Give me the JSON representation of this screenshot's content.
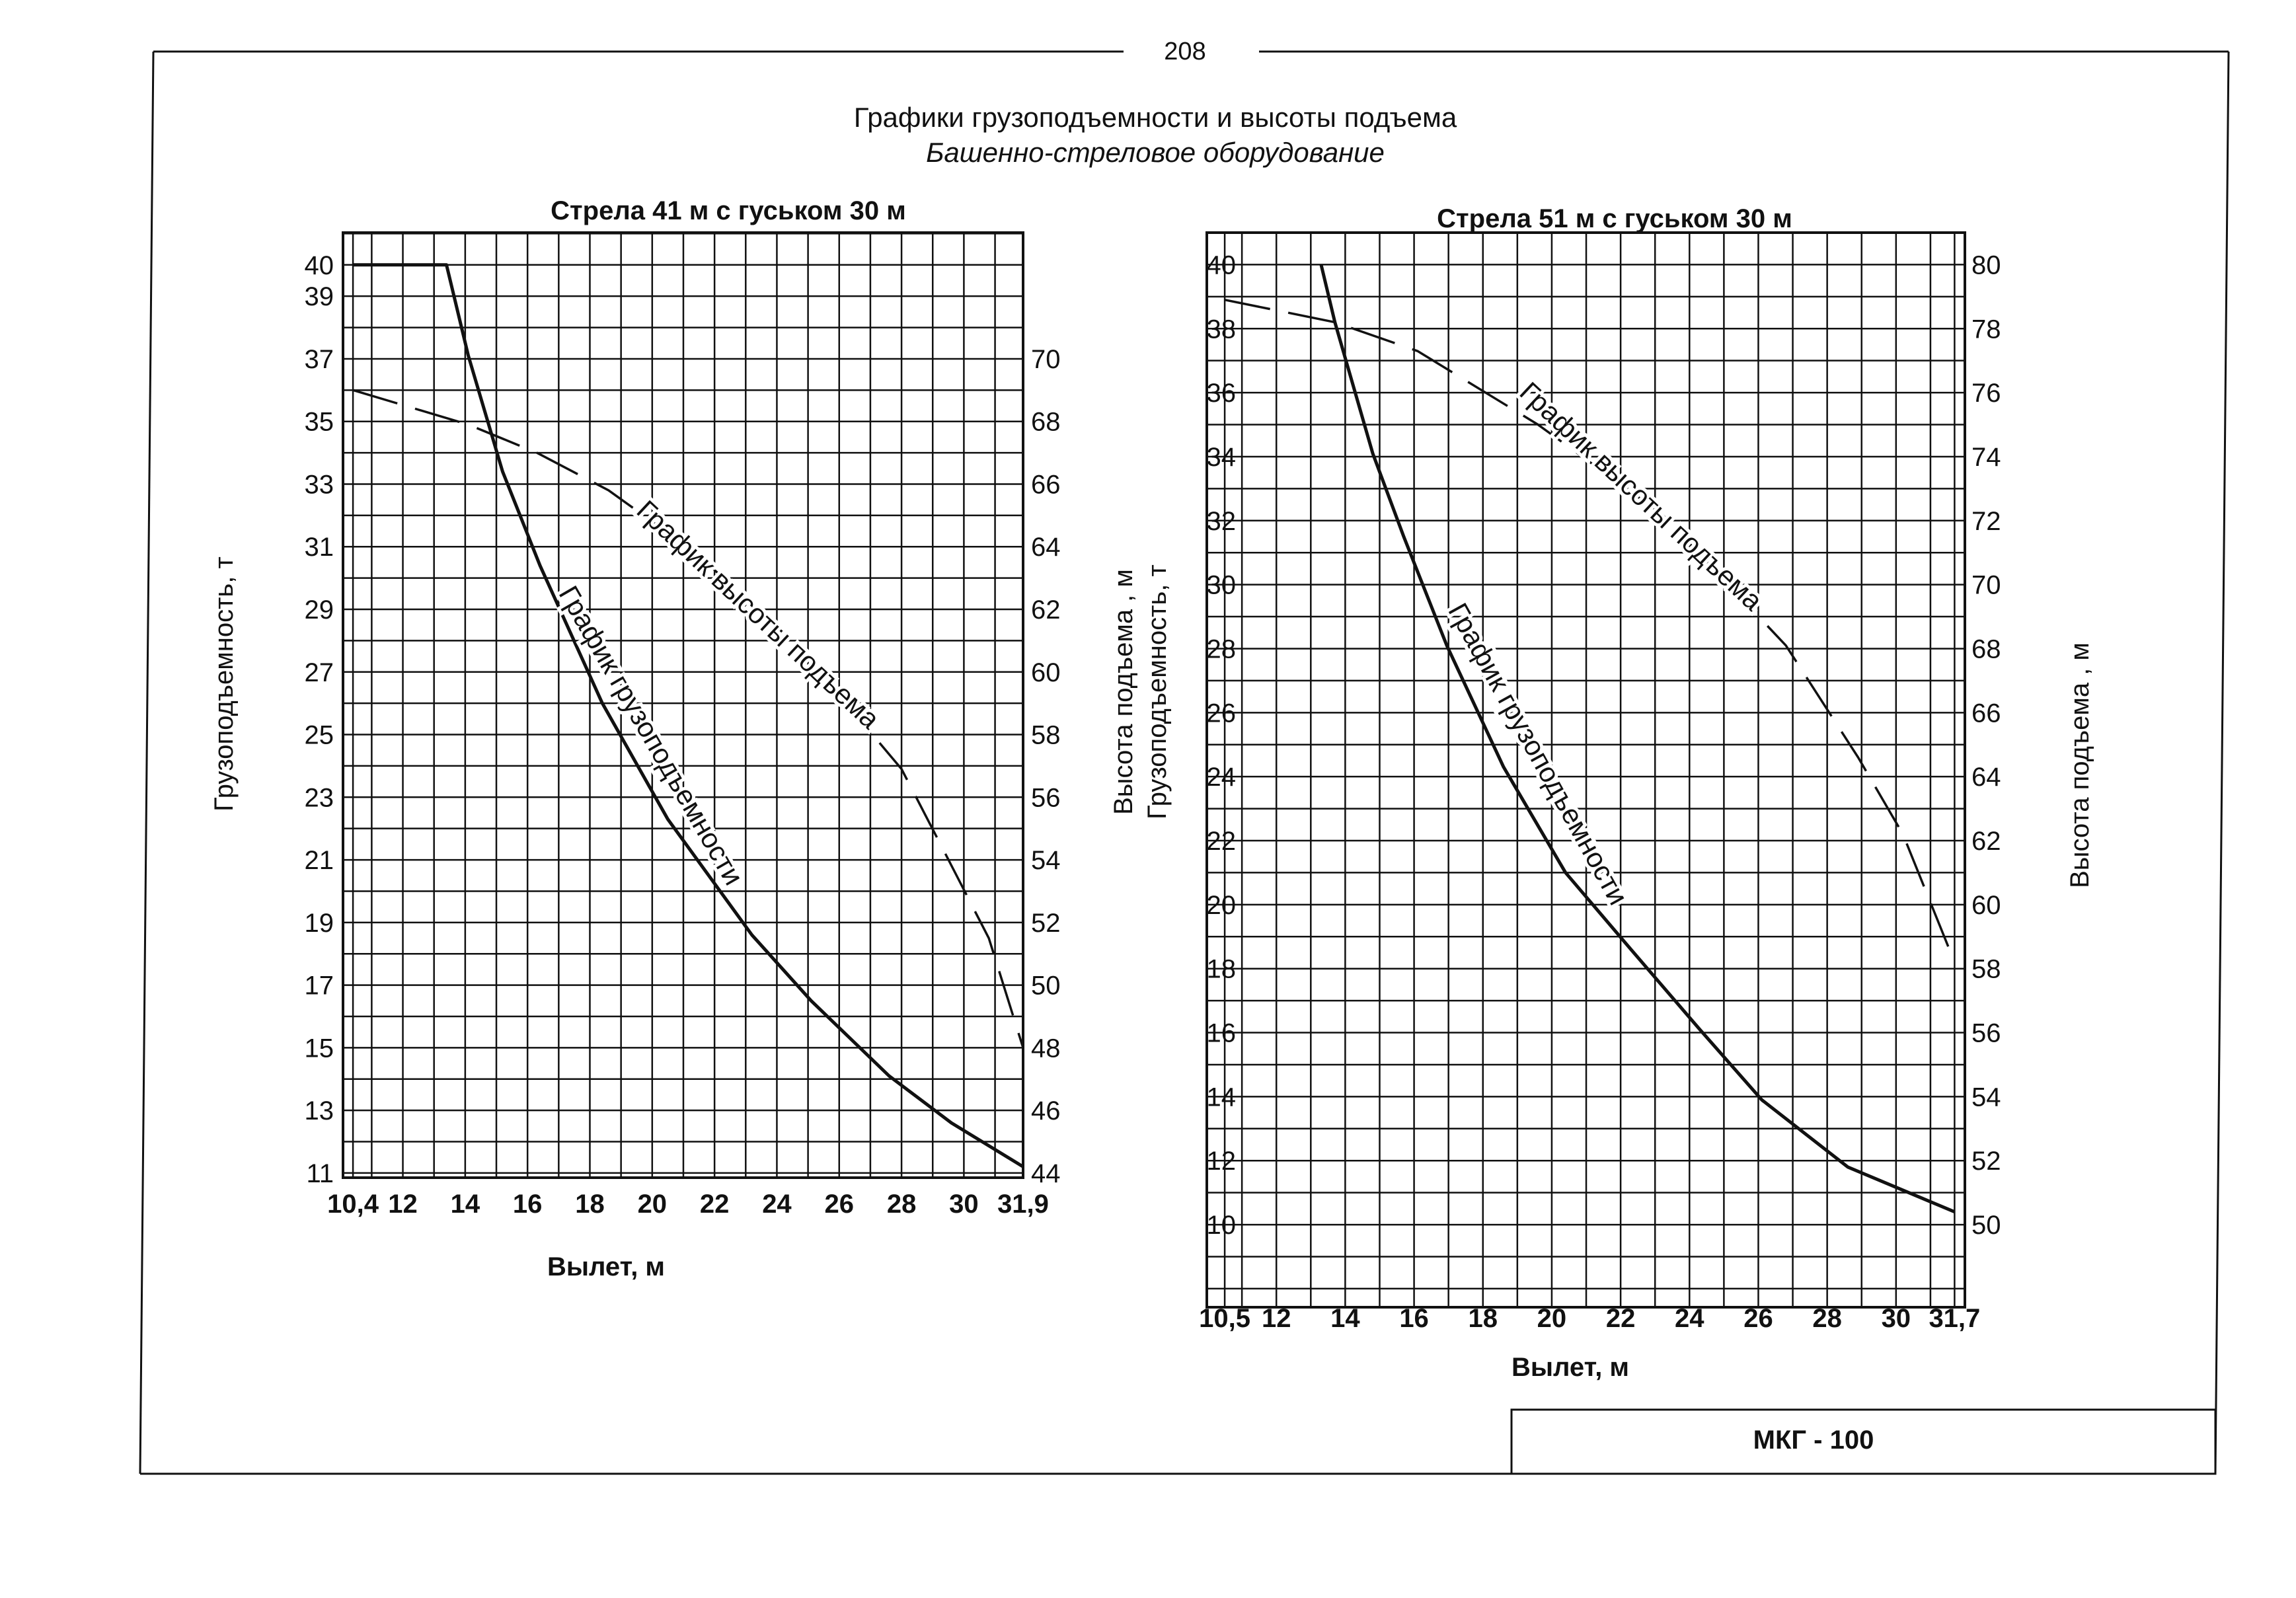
{
  "page_number": "208",
  "title": "Графики грузоподъемности и высоты подъема",
  "subtitle": "Башенно-стреловое оборудование",
  "stamp": "МКГ - 100",
  "colors": {
    "ink": "#111111",
    "paper": "#ffffff"
  },
  "chart_data": [
    {
      "type": "line",
      "title": "Стрела 41 м с гуськом 30 м",
      "xlabel": "Вылет, м",
      "ylabel": "Грузоподъемность, т",
      "y2label": "",
      "xlim": [
        10.4,
        31.9
      ],
      "ylim": [
        11,
        40
      ],
      "y2lim": [
        44,
        70
      ],
      "grid": true,
      "x_ticks": [
        {
          "v": 10.4,
          "t": "10,4"
        },
        {
          "v": 12,
          "t": "12"
        },
        {
          "v": 14,
          "t": "14"
        },
        {
          "v": 16,
          "t": "16"
        },
        {
          "v": 18,
          "t": "18"
        },
        {
          "v": 20,
          "t": "20"
        },
        {
          "v": 22,
          "t": "22"
        },
        {
          "v": 24,
          "t": "24"
        },
        {
          "v": 26,
          "t": "26"
        },
        {
          "v": 28,
          "t": "28"
        },
        {
          "v": 30,
          "t": "30"
        },
        {
          "v": 31.9,
          "t": "31,9"
        }
      ],
      "y_ticks": [
        "40",
        "39",
        "37",
        "35",
        "33",
        "31",
        "29",
        "27",
        "25",
        "23",
        "21",
        "19",
        "17",
        "15",
        "13",
        "11"
      ],
      "y2_ticks": [
        "70",
        "68",
        "66",
        "64",
        "62",
        "60",
        "58",
        "56",
        "54",
        "52",
        "50",
        "48",
        "46",
        "44"
      ],
      "series": [
        {
          "name": "График грузоподъемности",
          "axis": "left",
          "style": "solid",
          "x": [
            10.4,
            13.4,
            14.1,
            15.2,
            16.4,
            18.4,
            20.5,
            23.2,
            25.1,
            27.6,
            29.6,
            31.9
          ],
          "y": [
            40,
            40,
            37.1,
            33.4,
            30.4,
            26.0,
            22.3,
            18.6,
            16.5,
            14.1,
            12.6,
            11.2
          ]
        },
        {
          "name": "График высоты подъема",
          "axis": "right",
          "style": "dashed",
          "x": [
            10.4,
            14.1,
            16.3,
            18.6,
            21.4,
            24.7,
            28.0,
            29.3,
            30.8,
            31.9
          ],
          "y": [
            69.0,
            67.9,
            67.0,
            65.8,
            63.8,
            60.8,
            56.9,
            54.4,
            51.5,
            48.0
          ]
        }
      ]
    },
    {
      "type": "line",
      "title": "Стрела 51 м с гуськом 30 м",
      "xlabel": "Вылет, м",
      "ylabel": "Грузоподъемность, т",
      "ylabel_outer": "Высота подъема , м",
      "y2label": "Высота подъема , м",
      "xlim": [
        10.5,
        31.7
      ],
      "ylim": [
        10,
        40
      ],
      "y2lim": [
        50,
        80
      ],
      "grid": true,
      "x_ticks": [
        {
          "v": 10.5,
          "t": "10,5"
        },
        {
          "v": 12,
          "t": "12"
        },
        {
          "v": 14,
          "t": "14"
        },
        {
          "v": 16,
          "t": "16"
        },
        {
          "v": 18,
          "t": "18"
        },
        {
          "v": 20,
          "t": "20"
        },
        {
          "v": 22,
          "t": "22"
        },
        {
          "v": 24,
          "t": "24"
        },
        {
          "v": 26,
          "t": "26"
        },
        {
          "v": 28,
          "t": "28"
        },
        {
          "v": 30,
          "t": "30"
        },
        {
          "v": 31.7,
          "t": "31,7"
        }
      ],
      "y_ticks": [
        "40",
        "38",
        "36",
        "34",
        "32",
        "30",
        "28",
        "26",
        "24",
        "22",
        "20",
        "18",
        "16",
        "14",
        "12",
        "10"
      ],
      "y2_ticks": [
        "80",
        "78",
        "76",
        "74",
        "72",
        "70",
        "68",
        "66",
        "64",
        "62",
        "60",
        "58",
        "56",
        "54",
        "52",
        "50"
      ],
      "series": [
        {
          "name": "График грузоподъемности",
          "axis": "left",
          "style": "solid",
          "x": [
            13.3,
            13.7,
            14.8,
            15.7,
            16.95,
            18.6,
            20.4,
            22.3,
            24.3,
            26.1,
            28.6,
            31.7
          ],
          "y": [
            40,
            38.2,
            34.1,
            31.5,
            28.1,
            24.3,
            21.0,
            18.6,
            16.1,
            13.9,
            11.8,
            10.4
          ]
        },
        {
          "name": "График высоты подъема",
          "axis": "right",
          "style": "dashed",
          "x": [
            10.5,
            13.7,
            16.1,
            19.6,
            23.2,
            26.8,
            28.9,
            30.2,
            31.7
          ],
          "y": [
            78.9,
            78.2,
            77.3,
            75.0,
            72.2,
            68.1,
            64.6,
            62.2,
            58.2
          ]
        }
      ]
    }
  ]
}
